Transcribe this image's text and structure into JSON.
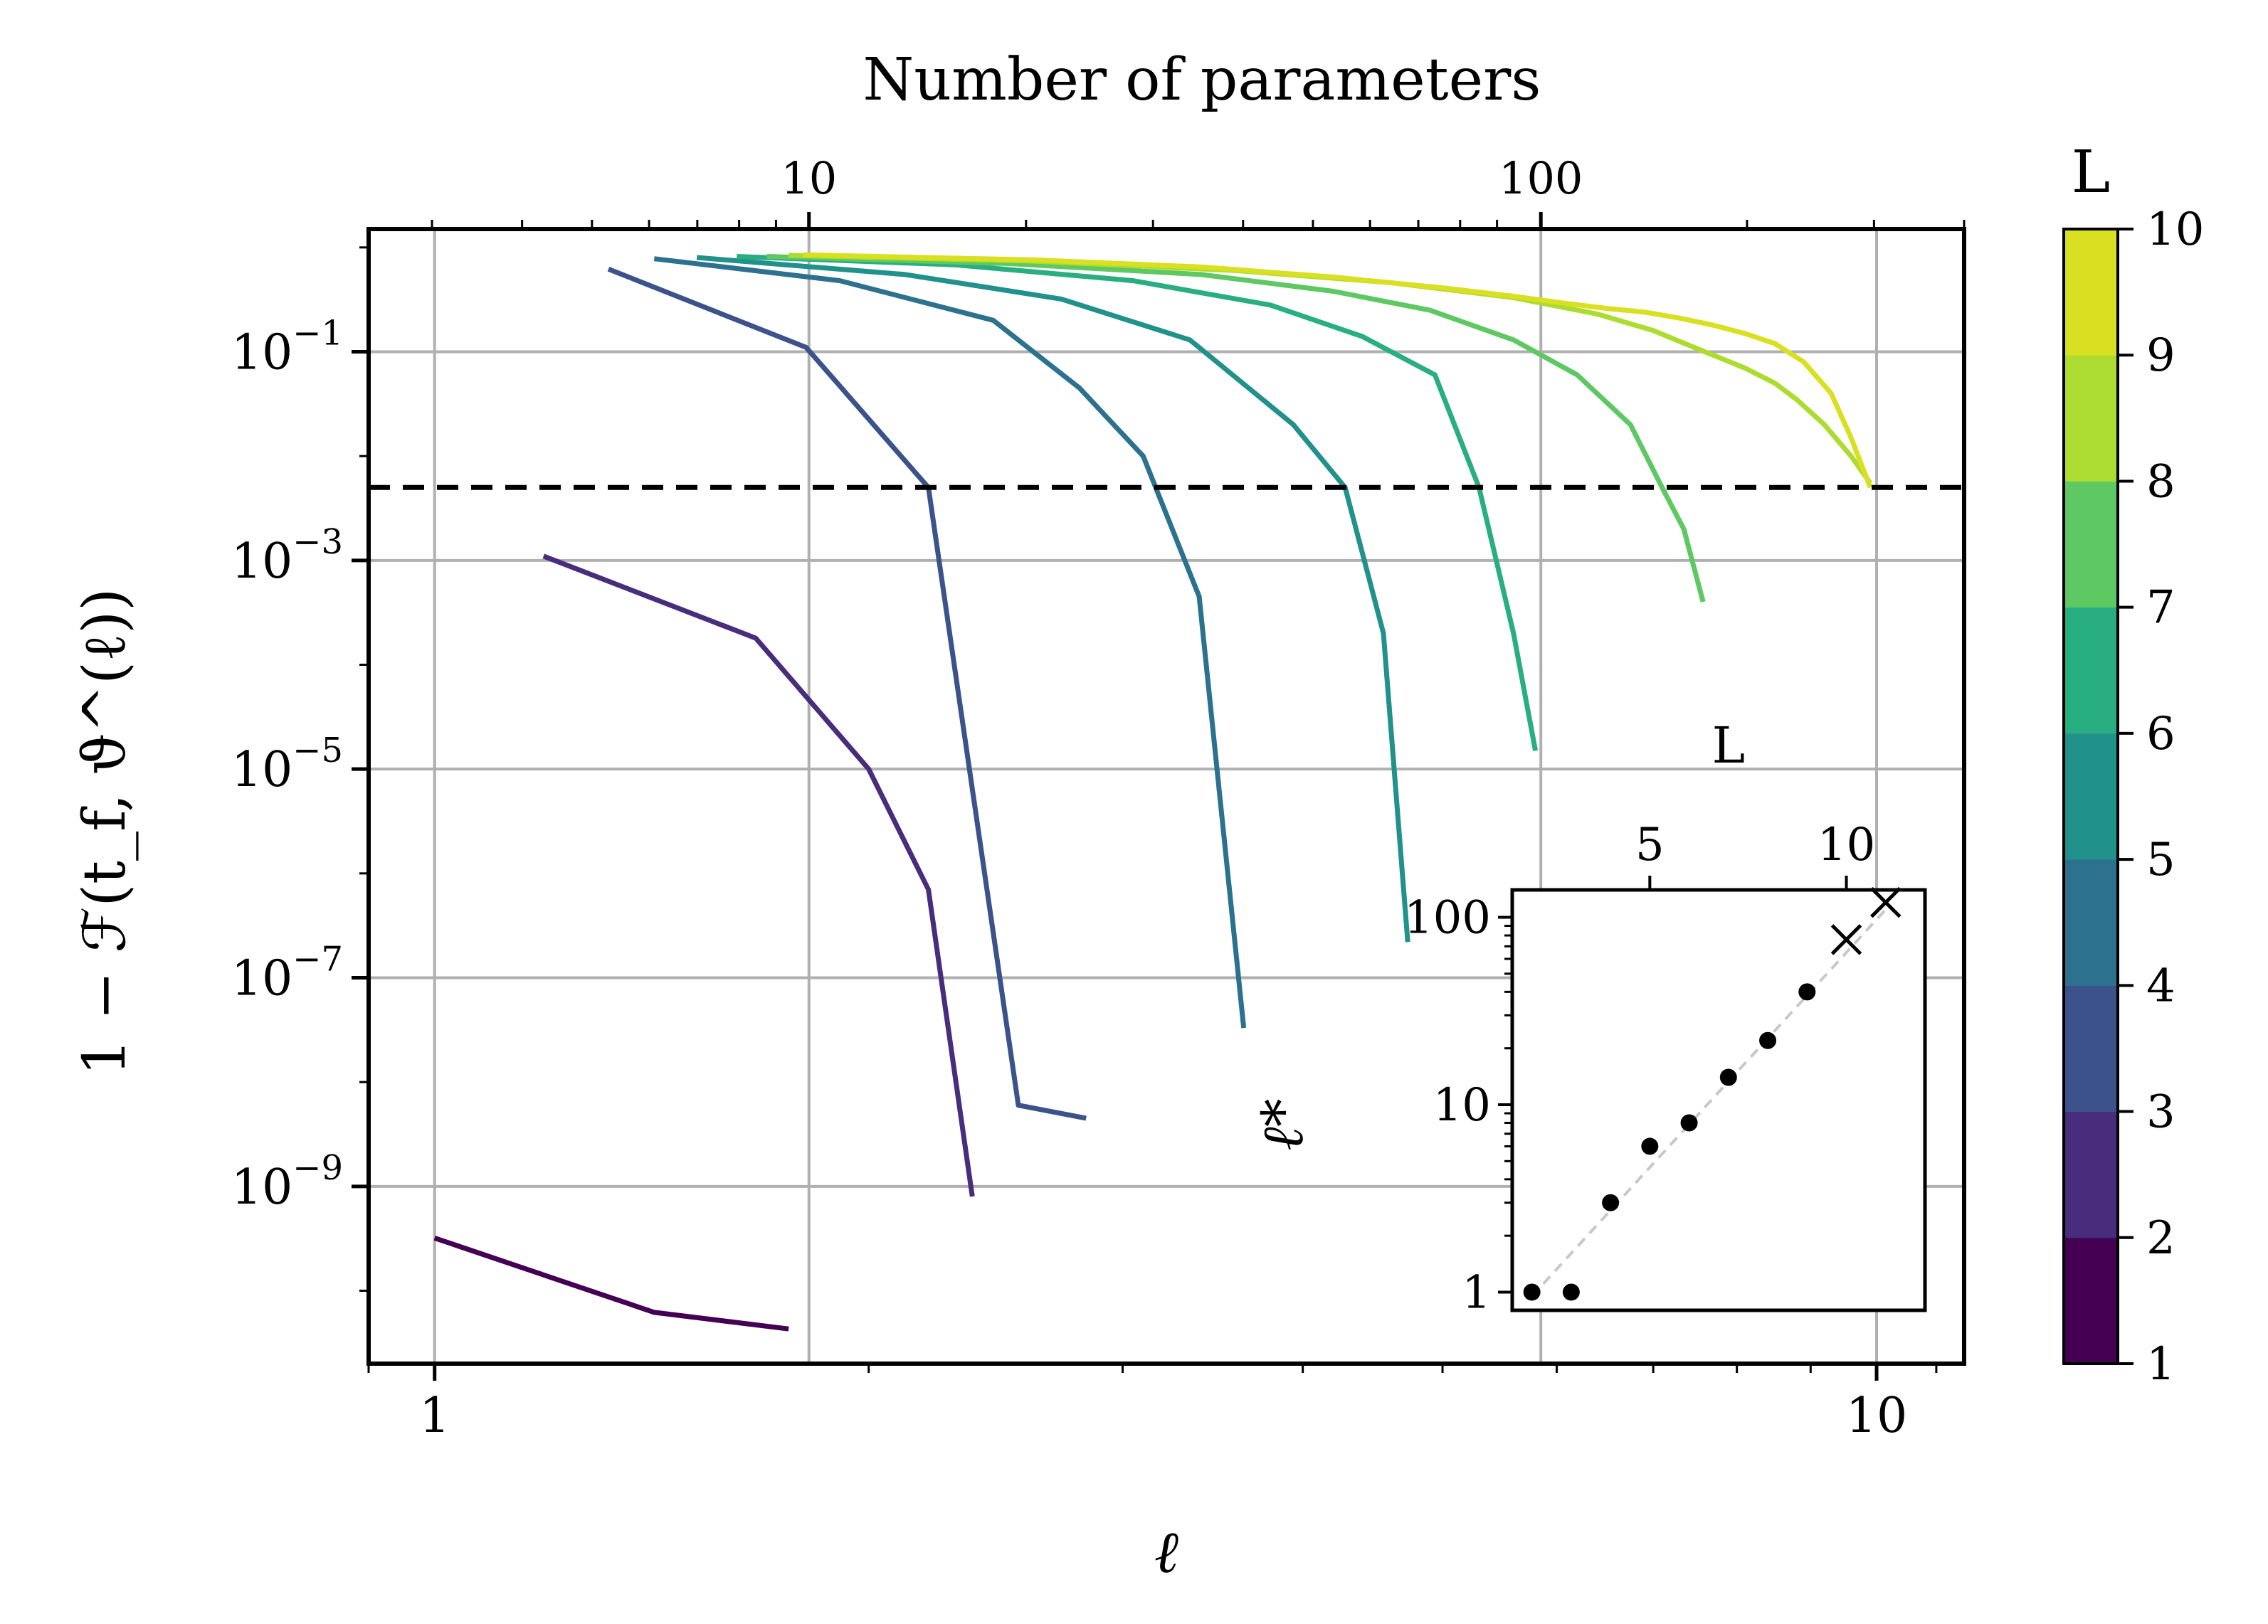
{
  "chart_data": [
    {
      "type": "line",
      "panel": "main",
      "xlabel": "ℓ",
      "ylabel": "1 − ℱ(t_f, ϑ^(ℓ))",
      "x_top_label": "Number of parameters",
      "xscale": "log",
      "yscale": "log",
      "xlim": [
        0.9,
        11.5
      ],
      "ylim": [
        2e-11,
        1.5
      ],
      "x_ticks": [
        {
          "value": 1,
          "label": "1"
        },
        {
          "value": 10,
          "label": "10"
        }
      ],
      "y_ticks": [
        {
          "value": 0.1,
          "base": "10",
          "exp": "−1"
        },
        {
          "value": 0.001,
          "base": "10",
          "exp": "−3"
        },
        {
          "value": 1e-05,
          "base": "10",
          "exp": "−5"
        },
        {
          "value": 1e-07,
          "base": "10",
          "exp": "−7"
        },
        {
          "value": 1e-09,
          "base": "10",
          "exp": "−9"
        }
      ],
      "top_ticks": [
        {
          "value": 1.818,
          "label": "10"
        },
        {
          "value": 5.85,
          "label": "100"
        }
      ],
      "grid": true,
      "threshold": 0.005,
      "colorbar": {
        "label": "L",
        "ticks": [
          "1",
          "2",
          "3",
          "4",
          "5",
          "6",
          "7",
          "8",
          "9",
          "10"
        ],
        "colors": [
          "#440154",
          "#472d7b",
          "#3b528b",
          "#2c728e",
          "#21918c",
          "#28ae80",
          "#5ec962",
          "#addc30",
          "#d9e021"
        ]
      },
      "series": [
        {
          "L": 1,
          "color": "#440154",
          "x": [
            1.0,
            1.42,
            1.76
          ],
          "y": [
            3.2e-10,
            6.2e-11,
            4.3e-11
          ]
        },
        {
          "L": 2,
          "color": "#472d7b",
          "x": [
            1.19,
            1.67,
            2.0,
            2.2,
            2.36
          ],
          "y": [
            0.0011,
            0.00018,
            1e-05,
            7e-07,
            8e-10
          ]
        },
        {
          "L": 3,
          "color": "#3b528b",
          "x": [
            1.32,
            1.81,
            2.2,
            2.54,
            2.83
          ],
          "y": [
            0.62,
            0.11,
            0.005,
            6e-09,
            4.5e-09
          ]
        },
        {
          "L": 4,
          "color": "#2c728e",
          "x": [
            1.42,
            1.91,
            2.44,
            2.8,
            3.1,
            3.39,
            3.64
          ],
          "y": [
            0.78,
            0.48,
            0.2,
            0.045,
            0.01,
            0.00045,
            3.3e-08
          ]
        },
        {
          "L": 5,
          "color": "#21918c",
          "x": [
            1.52,
            2.12,
            2.72,
            3.34,
            3.94,
            4.28,
            4.55,
            4.73
          ],
          "y": [
            0.8,
            0.55,
            0.32,
            0.13,
            0.02,
            0.005,
            0.0002,
            2.2e-07
          ]
        },
        {
          "L": 6,
          "color": "#28ae80",
          "x": [
            1.62,
            2.3,
            3.05,
            3.8,
            4.4,
            4.94,
            5.3,
            5.6,
            5.8
          ],
          "y": [
            0.82,
            0.68,
            0.48,
            0.28,
            0.14,
            0.06,
            0.005,
            0.0002,
            1.5e-05
          ]
        },
        {
          "L": 7,
          "color": "#5ec962",
          "x": [
            1.7,
            2.5,
            3.4,
            4.2,
            4.9,
            5.6,
            6.2,
            6.75,
            7.1,
            7.35,
            7.58
          ],
          "y": [
            0.82,
            0.7,
            0.55,
            0.38,
            0.25,
            0.13,
            0.06,
            0.02,
            0.005,
            0.002,
            0.0004
          ]
        },
        {
          "L": 8,
          "color": "#addc30",
          "x": [
            1.76,
            2.6,
            3.6,
            4.6,
            5.6,
            6.4,
            7.0,
            7.6,
            8.1,
            8.5,
            8.8,
            9.2,
            9.6,
            9.9
          ],
          "y": [
            0.84,
            0.74,
            0.6,
            0.46,
            0.33,
            0.23,
            0.16,
            0.1,
            0.07,
            0.05,
            0.035,
            0.02,
            0.01,
            0.0055
          ]
        },
        {
          "L": 9,
          "color": "#d9e021",
          "x": [
            1.8,
            2.6,
            3.4,
            4.2,
            5.0,
            5.6,
            6.1,
            6.5,
            6.9,
            7.3,
            7.7,
            8.1,
            8.5,
            8.9,
            9.3,
            9.6,
            9.9
          ],
          "y": [
            0.85,
            0.76,
            0.65,
            0.52,
            0.41,
            0.34,
            0.29,
            0.26,
            0.24,
            0.21,
            0.18,
            0.15,
            0.12,
            0.08,
            0.04,
            0.015,
            0.005
          ]
        }
      ]
    },
    {
      "type": "scatter",
      "panel": "inset",
      "ylabel": "ℓ*",
      "x_top_label": "L",
      "xscale": "linear",
      "yscale": "log",
      "xlim": [
        1.5,
        12.0
      ],
      "ylim": [
        0.8,
        140
      ],
      "x_ticks": [
        {
          "value": 5,
          "label": "5"
        },
        {
          "value": 10,
          "label": "10"
        }
      ],
      "y_ticks": [
        {
          "value": 1,
          "label": "1"
        },
        {
          "value": 10,
          "label": "10"
        },
        {
          "value": 100,
          "label": "100"
        }
      ],
      "points": [
        {
          "L": 2,
          "value": 1
        },
        {
          "L": 3,
          "value": 1
        },
        {
          "L": 4,
          "value": 3
        },
        {
          "L": 5,
          "value": 6
        },
        {
          "L": 6,
          "value": 8
        },
        {
          "L": 7,
          "value": 14
        },
        {
          "L": 8,
          "value": 22
        },
        {
          "L": 9,
          "value": 40
        }
      ],
      "crosses": [
        {
          "L": 10,
          "value": 76
        },
        {
          "L": 11,
          "value": 120
        }
      ],
      "trend": {
        "x": [
          2,
          11
        ],
        "y": [
          0.95,
          110
        ]
      }
    }
  ]
}
